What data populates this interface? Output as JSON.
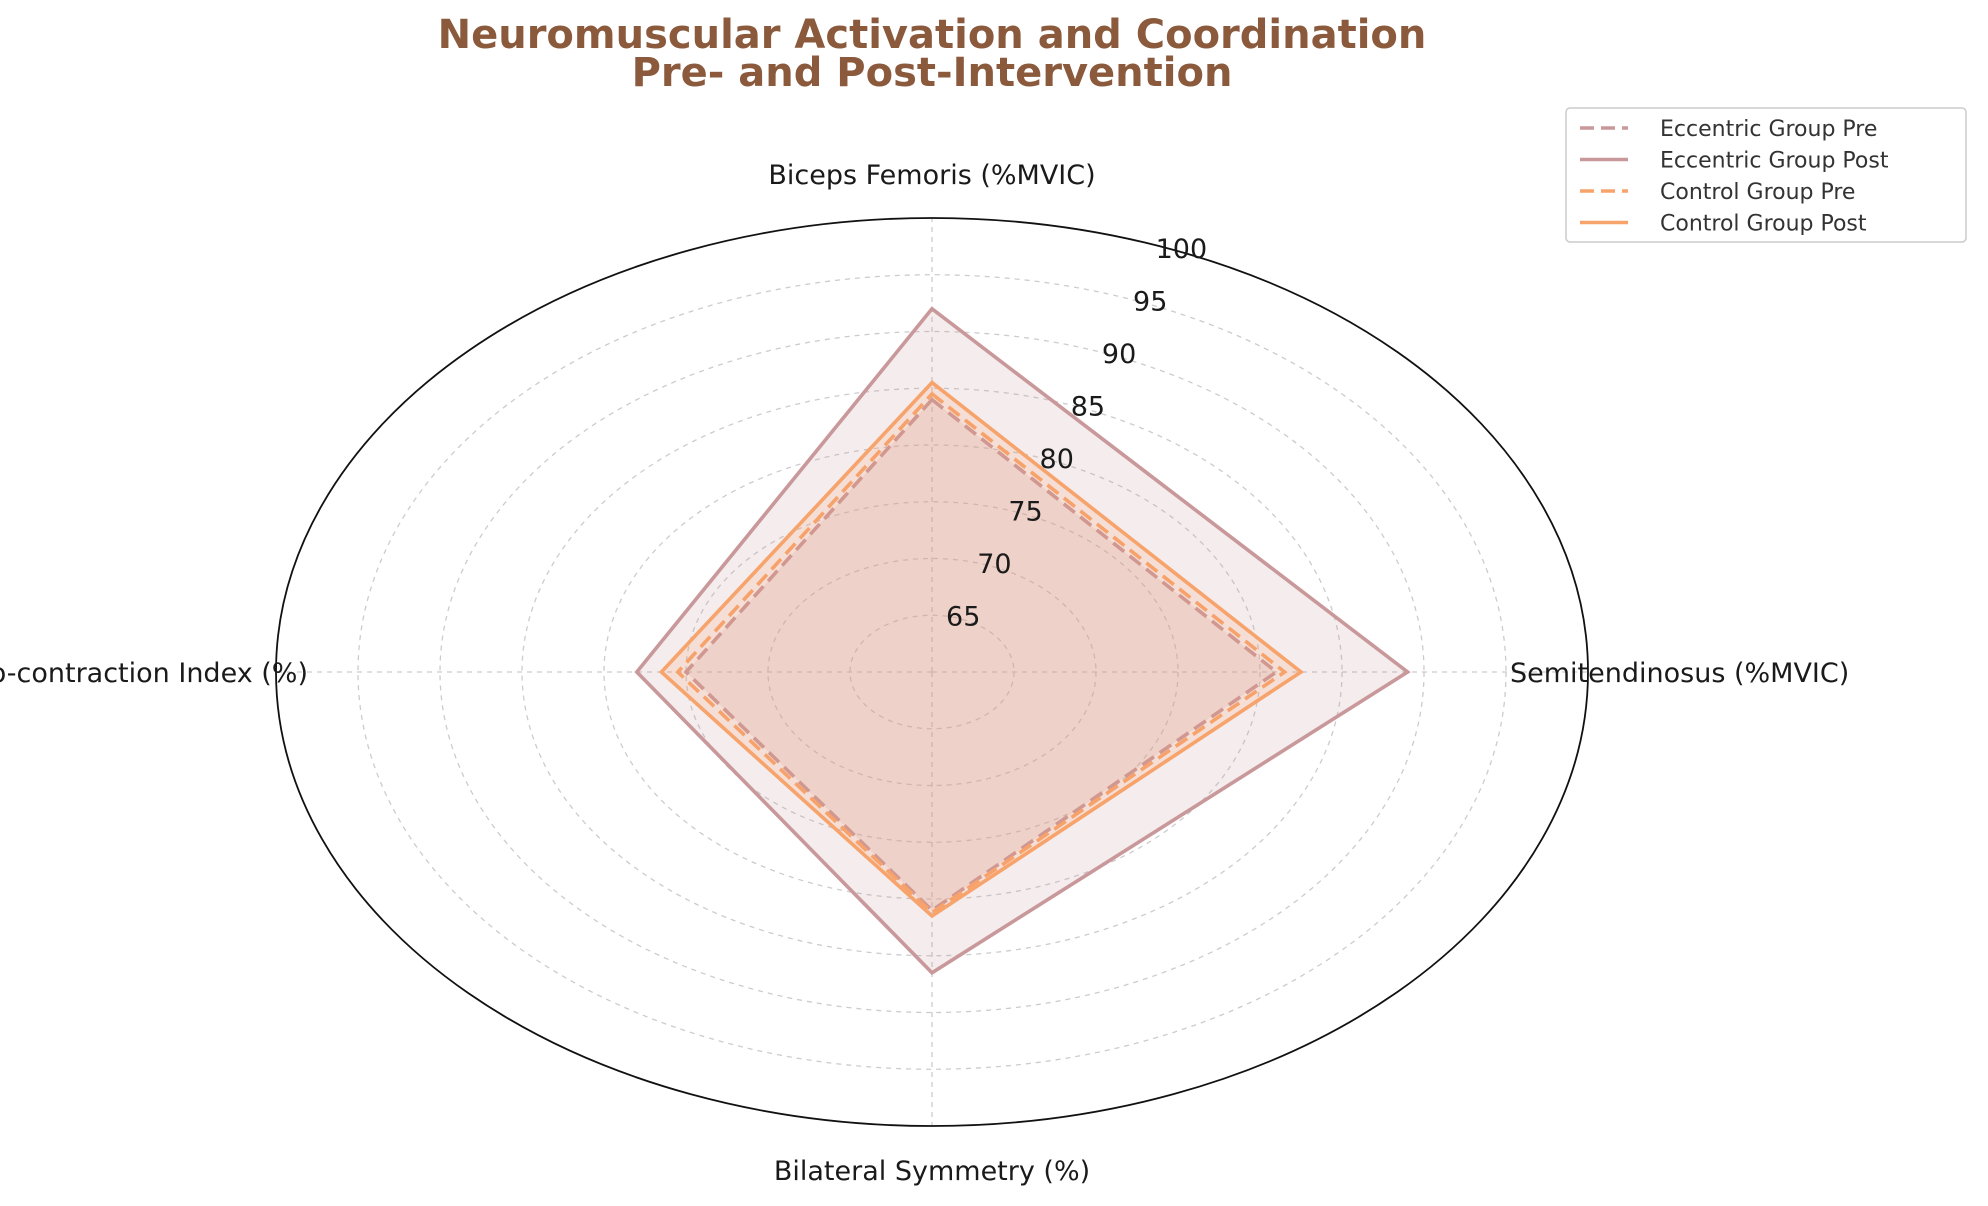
{
  "chart_data": {
    "type": "radar",
    "title_lines": [
      "Neuromuscular Activation and Coordination",
      "Pre- and Post-Intervention"
    ],
    "title_color": "#8B5A3C",
    "axes": [
      "Biceps Femoris (%MVIC)",
      "Semitendinosus (%MVIC)",
      "Bilateral Symmetry (%)",
      "Co-contraction Index (%)"
    ],
    "radial_range": [
      60,
      100
    ],
    "radial_ticks": [
      65,
      70,
      75,
      80,
      85,
      90,
      95,
      100
    ],
    "grid": true,
    "legend_position": "top-right",
    "series": [
      {
        "name": "Eccentric Group Pre",
        "values": [
          84,
          81,
          81,
          75
        ],
        "color": "#C9989A",
        "dash": true,
        "fill": true
      },
      {
        "name": "Eccentric Group Post",
        "values": [
          92,
          89,
          86.5,
          78
        ],
        "color": "#C9989A",
        "dash": false,
        "fill": true
      },
      {
        "name": "Control Group Pre",
        "values": [
          84.5,
          81.5,
          81.2,
          75.5
        ],
        "color": "#F7A36C",
        "dash": true,
        "fill": false
      },
      {
        "name": "Control Group Post",
        "values": [
          85.5,
          82.5,
          81.5,
          76.5
        ],
        "color": "#F7A36C",
        "dash": false,
        "fill": true
      }
    ]
  }
}
